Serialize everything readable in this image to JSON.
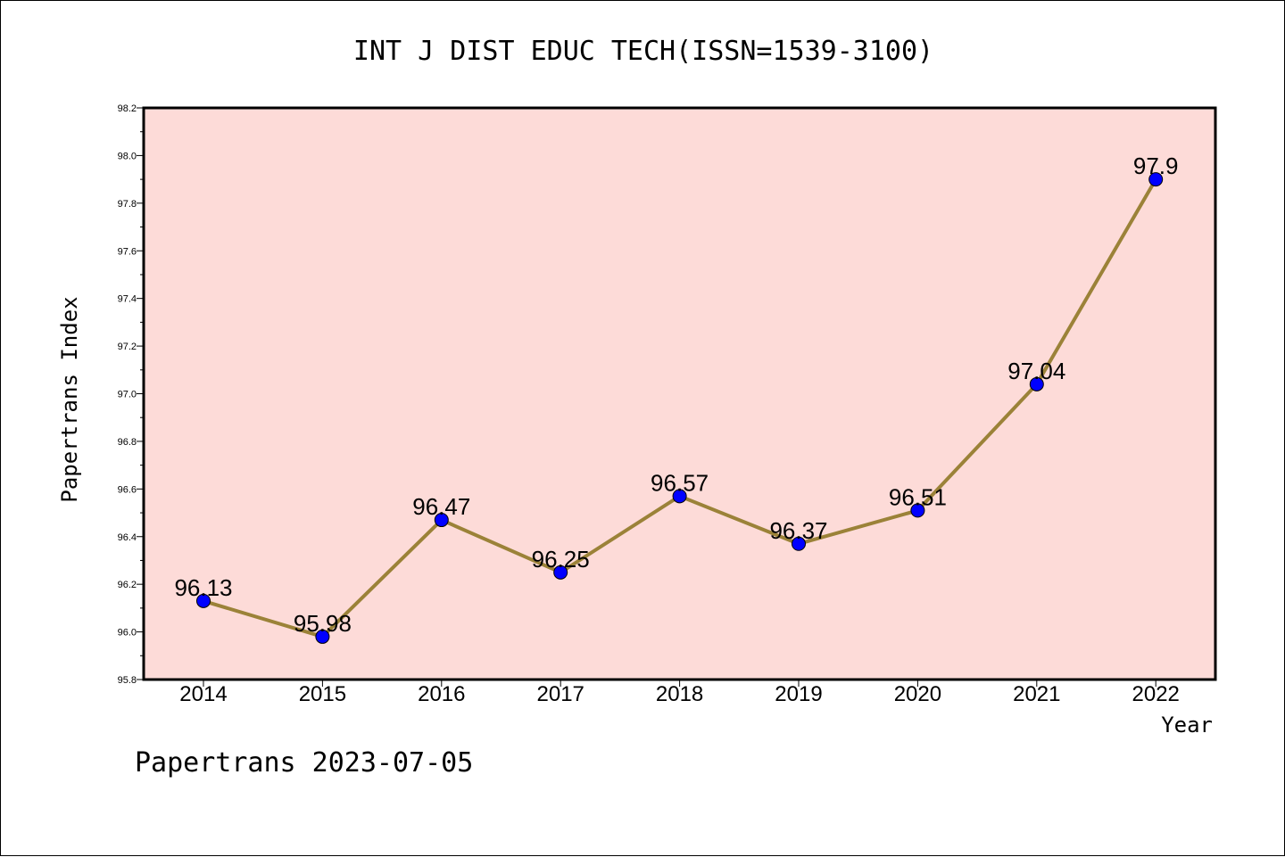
{
  "chart_data": {
    "type": "line",
    "title": "INT J DIST EDUC TECH(ISSN=1539-3100)",
    "xlabel": "Year",
    "ylabel": "Papertrans Index",
    "categories": [
      "2014",
      "2015",
      "2016",
      "2017",
      "2018",
      "2019",
      "2020",
      "2021",
      "2022"
    ],
    "values": [
      96.13,
      95.98,
      96.47,
      96.25,
      96.57,
      96.37,
      96.51,
      97.04,
      97.9
    ],
    "data_labels": [
      "96.13",
      "95.98",
      "96.47",
      "96.25",
      "96.57",
      "96.37",
      "96.51",
      "97.04",
      "97.9"
    ],
    "ylim": [
      95.8,
      98.2
    ],
    "yticks": [
      "95.8",
      "96.0",
      "96.2",
      "96.4",
      "96.6",
      "96.8",
      "97.0",
      "97.2",
      "97.4",
      "97.6",
      "97.8",
      "98.0",
      "98.2"
    ],
    "grid": false,
    "colors": {
      "plot_background": "#fddbd8",
      "line": "#9b8238",
      "marker": "#0000ff"
    }
  },
  "footer": "Papertrans 2023-07-05"
}
